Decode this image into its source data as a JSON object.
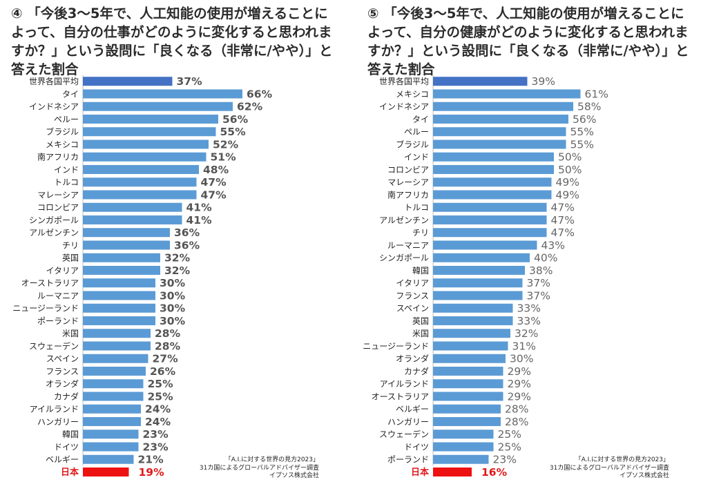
{
  "chart_data": [
    {
      "type": "bar",
      "orientation": "horizontal",
      "title": "④ 「今後3～5年で、人工知能の使用が増えることによって、自分の仕事がどのように変化すると思われますか？」という設問に「良くなる（非常に/やや）」と答えた割合",
      "categories": [
        "世界各国平均",
        "タイ",
        "インドネシア",
        "ペルー",
        "ブラジル",
        "メキシコ",
        "南アフリカ",
        "インド",
        "トルコ",
        "マレーシア",
        "コロンビア",
        "シンガポール",
        "アルゼンチン",
        "チリ",
        "英国",
        "イタリア",
        "オーストラリア",
        "ルーマニア",
        "ニュージーランド",
        "ポーランド",
        "米国",
        "スウェーデン",
        "スペイン",
        "フランス",
        "オランダ",
        "カナダ",
        "アイルランド",
        "ハンガリー",
        "韓国",
        "ドイツ",
        "ベルギー",
        "日本"
      ],
      "values": [
        37,
        66,
        62,
        56,
        55,
        52,
        51,
        48,
        47,
        47,
        41,
        41,
        36,
        36,
        32,
        32,
        30,
        30,
        30,
        30,
        28,
        28,
        27,
        26,
        25,
        25,
        24,
        24,
        23,
        23,
        21,
        19
      ],
      "value_labels": [
        "37%",
        "66%",
        "62%",
        "56%",
        "55%",
        "52%",
        "51%",
        "48%",
        "47%",
        "47%",
        "41%",
        "41%",
        "36%",
        "36%",
        "32%",
        "32%",
        "30%",
        "30%",
        "30%",
        "30%",
        "28%",
        "28%",
        "27%",
        "26%",
        "25%",
        "25%",
        "24%",
        "24%",
        "23%",
        "23%",
        "21%",
        "19%"
      ],
      "value_label_weight": "bold",
      "highlight_index": 31,
      "average_index": 0,
      "colors": {
        "average": "#4472c4",
        "bar": "#5b9bd5",
        "highlight": "#ee1111",
        "highlight_text": "#e0191b"
      },
      "source": [
        "「A.I.に対する世界の見方2023」",
        "31カ国によるグローバルアドバイザー調査",
        "イプソス株式会社"
      ]
    },
    {
      "type": "bar",
      "orientation": "horizontal",
      "title": "⑤ 「今後3～5年で、人工知能の使用が増えることによって、自分の健康がどのように変化すると思われますか？」という設問に「良くなる（非常に/やや）」と答えた割合",
      "categories": [
        "世界各国平均",
        "メキシコ",
        "インドネシア",
        "タイ",
        "ペルー",
        "ブラジル",
        "インド",
        "コロンビア",
        "マレーシア",
        "南アフリカ",
        "トルコ",
        "アルゼンチン",
        "チリ",
        "ルーマニア",
        "シンガポール",
        "韓国",
        "イタリア",
        "フランス",
        "スペイン",
        "英国",
        "米国",
        "ニュージーランド",
        "オランダ",
        "カナダ",
        "アイルランド",
        "オーストラリア",
        "ベルギー",
        "ハンガリー",
        "スウェーデン",
        "ドイツ",
        "ポーランド",
        "日本"
      ],
      "values": [
        39,
        61,
        58,
        56,
        55,
        55,
        50,
        50,
        49,
        49,
        47,
        47,
        47,
        43,
        40,
        38,
        37,
        37,
        33,
        33,
        32,
        31,
        30,
        29,
        29,
        29,
        28,
        28,
        25,
        25,
        23,
        16
      ],
      "value_labels": [
        "39%",
        "61%",
        "58%",
        "56%",
        "55%",
        "55%",
        "50%",
        "50%",
        "49%",
        "49%",
        "47%",
        "47%",
        "47%",
        "43%",
        "40%",
        "38%",
        "37%",
        "37%",
        "33%",
        "33%",
        "32%",
        "31%",
        "30%",
        "29%",
        "29%",
        "29%",
        "28%",
        "28%",
        "25%",
        "25%",
        "23%",
        "16%"
      ],
      "value_label_weight": "normal",
      "highlight_index": 31,
      "average_index": 0,
      "colors": {
        "average": "#4472c4",
        "bar": "#5b9bd5",
        "highlight": "#ee1111",
        "highlight_text": "#e0191b"
      },
      "source": [
        "「A.I.に対する世界の見方2023」",
        "31カ国によるグローバルアドバイザー調査",
        "イプソス株式会社"
      ]
    }
  ]
}
